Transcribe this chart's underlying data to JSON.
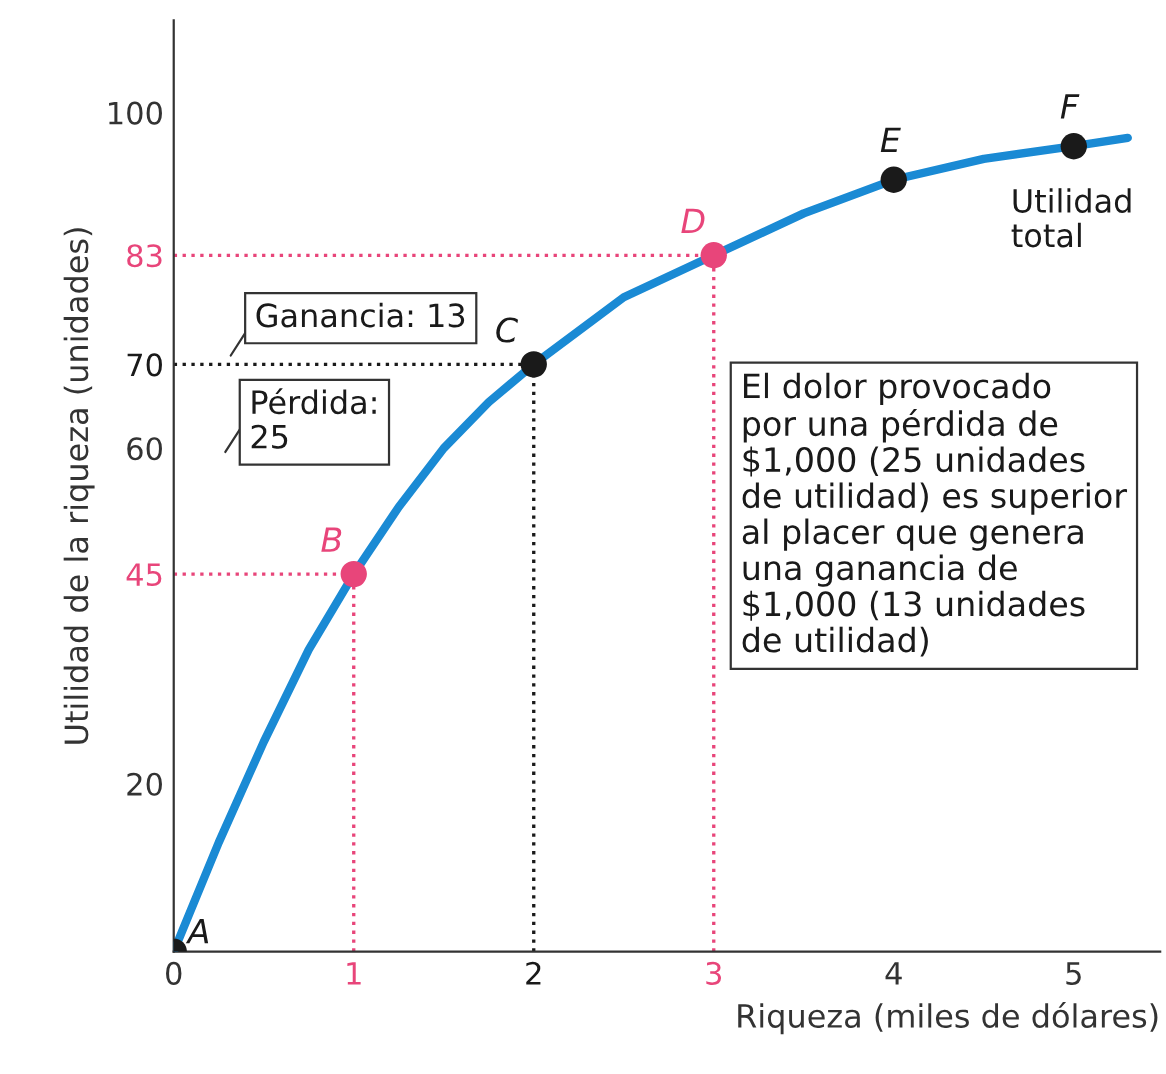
{
  "chart_data": {
    "type": "line",
    "xlabel": "Riqueza (miles de dólares)",
    "ylabel": "Utilidad de la riqueza (unidades)",
    "xlim": [
      0,
      5.48
    ],
    "ylim": [
      0,
      111
    ],
    "xticks": [
      0,
      1,
      2,
      3,
      4,
      5
    ],
    "yticks": [
      20,
      45,
      60,
      70,
      83,
      100
    ],
    "grid": false,
    "legend": false,
    "series": [
      {
        "color": "#1a8ad4",
        "x": [
          0,
          0.25,
          0.5,
          0.75,
          1,
          1.25,
          1.5,
          1.75,
          2,
          2.5,
          3,
          3.5,
          4,
          4.5,
          5,
          5.3
        ],
        "values": [
          0,
          13,
          25,
          36,
          45,
          53,
          60,
          65.5,
          70,
          78,
          83,
          88,
          92,
          94.5,
          96,
          97
        ]
      },
      {
        "type": "scatter",
        "color": "#1a1a1a",
        "colors": [
          "#1a1a1a",
          "#e8457a",
          "#1a1a1a",
          "#e8457a",
          "#1a1a1a",
          "#1a1a1a"
        ],
        "x": [
          0,
          1,
          2,
          3,
          4,
          5
        ],
        "values": [
          0,
          45,
          70,
          83,
          92,
          96
        ],
        "marker": "circle"
      }
    ],
    "ref_lines": [
      {
        "axis": "x",
        "value": 1,
        "color": "#e8457a",
        "line_style": "dotted"
      },
      {
        "axis": "x",
        "value": 2,
        "color": "#1a1a1a",
        "line_style": "dotted"
      },
      {
        "axis": "x",
        "value": 3,
        "color": "#e8457a",
        "line_style": "dotted"
      },
      {
        "axis": "y",
        "value": 45,
        "color": "#e8457a",
        "line_style": "dotted"
      },
      {
        "axis": "y",
        "value": 70,
        "color": "#1a1a1a",
        "line_style": "dotted"
      },
      {
        "axis": "y",
        "value": 83,
        "color": "#e8457a",
        "line_style": "dotted"
      }
    ],
    "annotations": [
      {
        "text": "A",
        "x": 0,
        "y": 0
      },
      {
        "text": "B",
        "x": 1,
        "y": 45
      },
      {
        "text": "C",
        "x": 2,
        "y": 70
      },
      {
        "text": "D",
        "x": 3,
        "y": 83
      },
      {
        "text": "E",
        "x": 4,
        "y": 92
      },
      {
        "text": "F",
        "x": 5,
        "y": 96
      },
      "Utilidad\ntotal",
      "Ganancia: 13",
      "Pérdida:\n25",
      "El dolor provocado\npor una pérdida de\n$1,000 (25 unidades\nde utilidad) es superior\nal placer que genera\nuna ganancia de\n$1,000 (13 unidades\nde utilidad)"
    ]
  }
}
